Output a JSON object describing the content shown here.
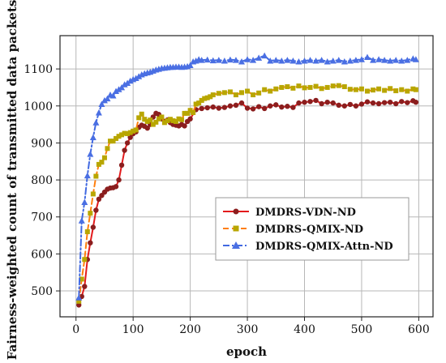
{
  "chart_data": {
    "type": "line",
    "title": "",
    "xlabel": "epoch",
    "ylabel": "Fairness-weighted count of transmitted data packets",
    "xlim": [
      -28,
      625
    ],
    "ylim": [
      430,
      1190
    ],
    "xticks": [
      0,
      100,
      200,
      300,
      400,
      500,
      600
    ],
    "yticks": [
      500,
      600,
      700,
      800,
      900,
      1000,
      1100
    ],
    "grid": true,
    "legend_position": "center-right",
    "series": [
      {
        "name": "DMDRS-VDN-ND",
        "color": "#e31a1c",
        "marker": "circle",
        "line_style": "solid",
        "points": [
          [
            5,
            462
          ],
          [
            10,
            485
          ],
          [
            15,
            512
          ],
          [
            20,
            585
          ],
          [
            25,
            630
          ],
          [
            30,
            672
          ],
          [
            35,
            718
          ],
          [
            40,
            748
          ],
          [
            45,
            758
          ],
          [
            50,
            767
          ],
          [
            55,
            775
          ],
          [
            60,
            778
          ],
          [
            65,
            779
          ],
          [
            70,
            782
          ],
          [
            75,
            800
          ],
          [
            80,
            840
          ],
          [
            85,
            880
          ],
          [
            90,
            900
          ],
          [
            95,
            915
          ],
          [
            100,
            925
          ],
          [
            105,
            930
          ],
          [
            110,
            942
          ],
          [
            115,
            948
          ],
          [
            120,
            945
          ],
          [
            125,
            940
          ],
          [
            130,
            950
          ],
          [
            135,
            970
          ],
          [
            140,
            980
          ],
          [
            145,
            977
          ],
          [
            150,
            965
          ],
          [
            155,
            958
          ],
          [
            160,
            962
          ],
          [
            165,
            955
          ],
          [
            170,
            950
          ],
          [
            175,
            948
          ],
          [
            180,
            946
          ],
          [
            185,
            950
          ],
          [
            190,
            946
          ],
          [
            195,
            958
          ],
          [
            200,
            965
          ],
          [
            210,
            990
          ],
          [
            220,
            993
          ],
          [
            230,
            995
          ],
          [
            240,
            997
          ],
          [
            250,
            994
          ],
          [
            260,
            996
          ],
          [
            270,
            1000
          ],
          [
            280,
            1002
          ],
          [
            290,
            1008
          ],
          [
            300,
            994
          ],
          [
            310,
            992
          ],
          [
            320,
            998
          ],
          [
            330,
            993
          ],
          [
            340,
            1000
          ],
          [
            350,
            1003
          ],
          [
            360,
            997
          ],
          [
            370,
            999
          ],
          [
            380,
            996
          ],
          [
            390,
            1008
          ],
          [
            400,
            1010
          ],
          [
            410,
            1012
          ],
          [
            420,
            1015
          ],
          [
            430,
            1006
          ],
          [
            440,
            1010
          ],
          [
            450,
            1008
          ],
          [
            460,
            1002
          ],
          [
            470,
            1000
          ],
          [
            480,
            1004
          ],
          [
            490,
            1000
          ],
          [
            500,
            1005
          ],
          [
            510,
            1011
          ],
          [
            520,
            1008
          ],
          [
            530,
            1006
          ],
          [
            540,
            1009
          ],
          [
            550,
            1010
          ],
          [
            560,
            1006
          ],
          [
            570,
            1012
          ],
          [
            580,
            1009
          ],
          [
            590,
            1014
          ],
          [
            595,
            1010
          ]
        ]
      },
      {
        "name": "DMDRS-QMIX-ND",
        "color": "#ff7f0e",
        "marker": "square",
        "line_style": "dashed",
        "points": [
          [
            5,
            472
          ],
          [
            10,
            532
          ],
          [
            15,
            585
          ],
          [
            20,
            660
          ],
          [
            25,
            710
          ],
          [
            30,
            762
          ],
          [
            35,
            810
          ],
          [
            40,
            842
          ],
          [
            45,
            848
          ],
          [
            50,
            860
          ],
          [
            55,
            885
          ],
          [
            60,
            905
          ],
          [
            65,
            905
          ],
          [
            70,
            912
          ],
          [
            75,
            918
          ],
          [
            80,
            922
          ],
          [
            85,
            926
          ],
          [
            90,
            925
          ],
          [
            95,
            928
          ],
          [
            100,
            932
          ],
          [
            105,
            935
          ],
          [
            110,
            968
          ],
          [
            115,
            978
          ],
          [
            120,
            964
          ],
          [
            125,
            958
          ],
          [
            130,
            962
          ],
          [
            135,
            950
          ],
          [
            140,
            956
          ],
          [
            145,
            965
          ],
          [
            150,
            970
          ],
          [
            155,
            955
          ],
          [
            160,
            960
          ],
          [
            165,
            964
          ],
          [
            170,
            960
          ],
          [
            175,
            958
          ],
          [
            180,
            965
          ],
          [
            185,
            963
          ],
          [
            190,
            980
          ],
          [
            195,
            980
          ],
          [
            200,
            988
          ],
          [
            205,
            982
          ],
          [
            210,
            1005
          ],
          [
            215,
            1008
          ],
          [
            220,
            1015
          ],
          [
            225,
            1020
          ],
          [
            230,
            1022
          ],
          [
            235,
            1025
          ],
          [
            240,
            1030
          ],
          [
            250,
            1034
          ],
          [
            260,
            1036
          ],
          [
            270,
            1038
          ],
          [
            280,
            1030
          ],
          [
            290,
            1036
          ],
          [
            300,
            1040
          ],
          [
            310,
            1030
          ],
          [
            320,
            1035
          ],
          [
            330,
            1044
          ],
          [
            340,
            1040
          ],
          [
            350,
            1046
          ],
          [
            360,
            1050
          ],
          [
            370,
            1052
          ],
          [
            380,
            1048
          ],
          [
            390,
            1054
          ],
          [
            400,
            1049
          ],
          [
            410,
            1050
          ],
          [
            420,
            1053
          ],
          [
            430,
            1047
          ],
          [
            440,
            1050
          ],
          [
            450,
            1054
          ],
          [
            460,
            1055
          ],
          [
            470,
            1052
          ],
          [
            480,
            1045
          ],
          [
            490,
            1044
          ],
          [
            500,
            1046
          ],
          [
            510,
            1040
          ],
          [
            520,
            1043
          ],
          [
            530,
            1046
          ],
          [
            540,
            1042
          ],
          [
            550,
            1047
          ],
          [
            560,
            1041
          ],
          [
            570,
            1044
          ],
          [
            580,
            1040
          ],
          [
            590,
            1046
          ],
          [
            595,
            1044
          ]
        ]
      },
      {
        "name": "DMDRS-QMIX-Attn-ND",
        "color": "#4169e1",
        "marker": "triangle",
        "line_style": "dashdot",
        "points": [
          [
            5,
            482
          ],
          [
            10,
            690
          ],
          [
            15,
            740
          ],
          [
            20,
            812
          ],
          [
            25,
            870
          ],
          [
            30,
            915
          ],
          [
            35,
            955
          ],
          [
            40,
            982
          ],
          [
            45,
            1005
          ],
          [
            50,
            1015
          ],
          [
            55,
            1020
          ],
          [
            60,
            1030
          ],
          [
            65,
            1028
          ],
          [
            70,
            1040
          ],
          [
            75,
            1045
          ],
          [
            80,
            1050
          ],
          [
            85,
            1058
          ],
          [
            90,
            1062
          ],
          [
            95,
            1068
          ],
          [
            100,
            1072
          ],
          [
            105,
            1075
          ],
          [
            110,
            1080
          ],
          [
            115,
            1085
          ],
          [
            120,
            1088
          ],
          [
            125,
            1090
          ],
          [
            130,
            1092
          ],
          [
            135,
            1095
          ],
          [
            140,
            1098
          ],
          [
            145,
            1100
          ],
          [
            150,
            1102
          ],
          [
            155,
            1103
          ],
          [
            160,
            1104
          ],
          [
            165,
            1105
          ],
          [
            170,
            1105
          ],
          [
            175,
            1106
          ],
          [
            180,
            1106
          ],
          [
            185,
            1105
          ],
          [
            190,
            1106
          ],
          [
            195,
            1107
          ],
          [
            200,
            1110
          ],
          [
            205,
            1120
          ],
          [
            210,
            1122
          ],
          [
            215,
            1126
          ],
          [
            220,
            1124
          ],
          [
            230,
            1125
          ],
          [
            240,
            1123
          ],
          [
            250,
            1124
          ],
          [
            260,
            1122
          ],
          [
            270,
            1125
          ],
          [
            280,
            1124
          ],
          [
            290,
            1120
          ],
          [
            300,
            1126
          ],
          [
            310,
            1124
          ],
          [
            320,
            1130
          ],
          [
            330,
            1136
          ],
          [
            340,
            1122
          ],
          [
            350,
            1124
          ],
          [
            360,
            1122
          ],
          [
            370,
            1124
          ],
          [
            380,
            1122
          ],
          [
            390,
            1120
          ],
          [
            400,
            1122
          ],
          [
            410,
            1124
          ],
          [
            420,
            1122
          ],
          [
            430,
            1124
          ],
          [
            440,
            1120
          ],
          [
            450,
            1122
          ],
          [
            460,
            1124
          ],
          [
            470,
            1120
          ],
          [
            480,
            1122
          ],
          [
            490,
            1124
          ],
          [
            500,
            1126
          ],
          [
            510,
            1132
          ],
          [
            520,
            1124
          ],
          [
            530,
            1126
          ],
          [
            540,
            1124
          ],
          [
            550,
            1122
          ],
          [
            560,
            1124
          ],
          [
            570,
            1122
          ],
          [
            580,
            1124
          ],
          [
            590,
            1128
          ],
          [
            595,
            1126
          ]
        ]
      }
    ]
  }
}
